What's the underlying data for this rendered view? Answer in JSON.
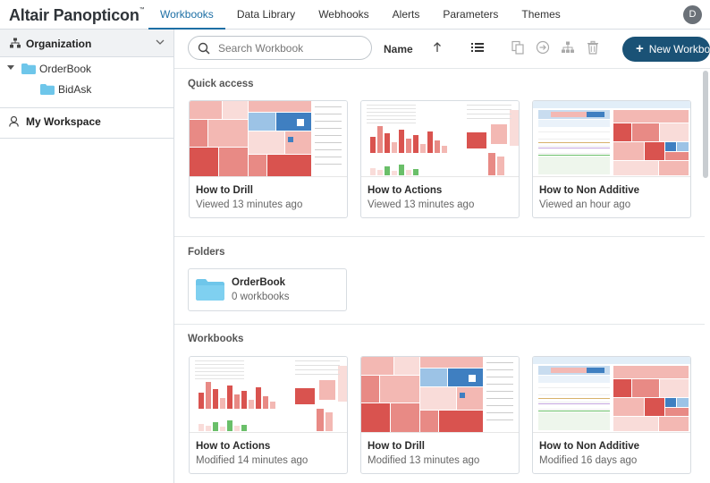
{
  "app": {
    "logo": "Altair Panopticon",
    "logo_mark": "™",
    "avatar_initial": "D"
  },
  "nav": {
    "tabs": [
      {
        "label": "Workbooks",
        "active": true
      },
      {
        "label": "Data Library"
      },
      {
        "label": "Webhooks"
      },
      {
        "label": "Alerts"
      },
      {
        "label": "Parameters"
      },
      {
        "label": "Themes"
      }
    ]
  },
  "sidebar": {
    "organization_label": "Organization",
    "tree": [
      {
        "label": "OrderBook",
        "level": 0,
        "expanded": true
      },
      {
        "label": "BidAsk",
        "level": 1
      }
    ],
    "workspace_label": "My Workspace"
  },
  "toolbar": {
    "search_placeholder": "Search Workbook",
    "sort_label": "Name",
    "new_button_label": "New Workbook"
  },
  "quick_access": {
    "title": "Quick access",
    "items": [
      {
        "name": "How to Drill",
        "meta": "Viewed 13 minutes ago",
        "thumb": "drill"
      },
      {
        "name": "How to Actions",
        "meta": "Viewed 13 minutes ago",
        "thumb": "actions"
      },
      {
        "name": "How to Non Additive",
        "meta": "Viewed an hour ago",
        "thumb": "nonadditive"
      }
    ]
  },
  "folders": {
    "title": "Folders",
    "items": [
      {
        "name": "OrderBook",
        "count": "0 workbooks"
      }
    ]
  },
  "workbooks": {
    "title": "Workbooks",
    "items": [
      {
        "name": "How to Actions",
        "meta": "Modified 14 minutes ago",
        "thumb": "actions"
      },
      {
        "name": "How to Drill",
        "meta": "Modified 13 minutes ago",
        "thumb": "drill"
      },
      {
        "name": "How to Non Additive",
        "meta": "Modified 16 days ago",
        "thumb": "nonadditive"
      }
    ]
  },
  "colors": {
    "accent": "#1d6fa5",
    "primary_button": "#1a5276",
    "folder": "#6ec6ea",
    "heat_red": "#d9534f",
    "heat_light": "#f3b8b3",
    "heat_blue": "#3f7fc1",
    "bar_green": "#6abf69"
  },
  "icons": [
    "org-hierarchy-icon",
    "chevron-down-icon",
    "caret-down-icon",
    "folder-icon",
    "user-icon",
    "search-icon",
    "sort-ascending-icon",
    "list-view-icon",
    "duplicate-icon",
    "move-icon",
    "hierarchy-icon",
    "trash-icon",
    "plus-icon"
  ]
}
